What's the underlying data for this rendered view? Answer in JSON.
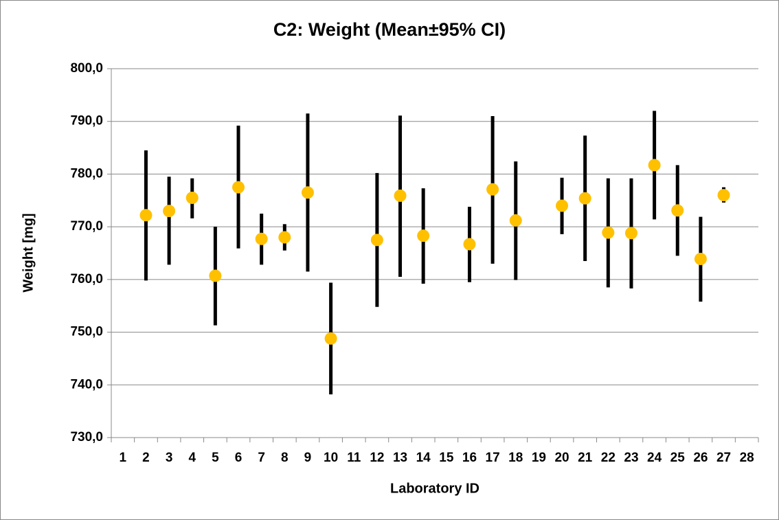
{
  "chart_data": {
    "type": "errorbar",
    "title": "C2: Weight (Mean±95% CI)",
    "x_label": "Laboratory ID",
    "y_label": "Weight [mg]",
    "categories": [
      "1",
      "2",
      "3",
      "4",
      "5",
      "6",
      "7",
      "8",
      "9",
      "10",
      "11",
      "12",
      "13",
      "14",
      "15",
      "16",
      "17",
      "18",
      "19",
      "20",
      "21",
      "22",
      "23",
      "24",
      "25",
      "26",
      "27",
      "28"
    ],
    "series": [
      {
        "color": "#ffc000",
        "bar_color": "#000000",
        "values": [
          null,
          772.2,
          773.0,
          775.5,
          760.7,
          777.5,
          767.7,
          768.0,
          776.5,
          748.8,
          null,
          767.5,
          775.9,
          768.3,
          null,
          766.7,
          777.1,
          771.2,
          null,
          774.0,
          775.4,
          768.9,
          768.8,
          781.7,
          773.1,
          763.9,
          776.0,
          null
        ],
        "lower": [
          null,
          759.8,
          762.8,
          771.6,
          751.3,
          765.9,
          762.8,
          765.5,
          761.5,
          738.2,
          null,
          754.8,
          760.5,
          759.2,
          null,
          759.5,
          763.0,
          759.9,
          null,
          768.6,
          763.5,
          758.5,
          758.3,
          771.4,
          764.5,
          755.8,
          774.6,
          null
        ],
        "upper": [
          null,
          784.5,
          779.5,
          779.2,
          770.0,
          789.2,
          772.5,
          770.5,
          791.5,
          759.4,
          null,
          780.2,
          791.1,
          777.3,
          null,
          773.8,
          791.0,
          782.4,
          null,
          779.3,
          787.3,
          779.2,
          779.2,
          792.0,
          781.7,
          771.9,
          777.5,
          null
        ]
      }
    ],
    "ylim": [
      730,
      800
    ],
    "yticks": [
      {
        "value": 730,
        "label": "730,0"
      },
      {
        "value": 740,
        "label": "740,0"
      },
      {
        "value": 750,
        "label": "750,0"
      },
      {
        "value": 760,
        "label": "760,0"
      },
      {
        "value": 770,
        "label": "770,0"
      },
      {
        "value": 780,
        "label": "780,0"
      },
      {
        "value": 790,
        "label": "790,0"
      },
      {
        "value": 800,
        "label": "800,0"
      }
    ],
    "grid": true
  }
}
